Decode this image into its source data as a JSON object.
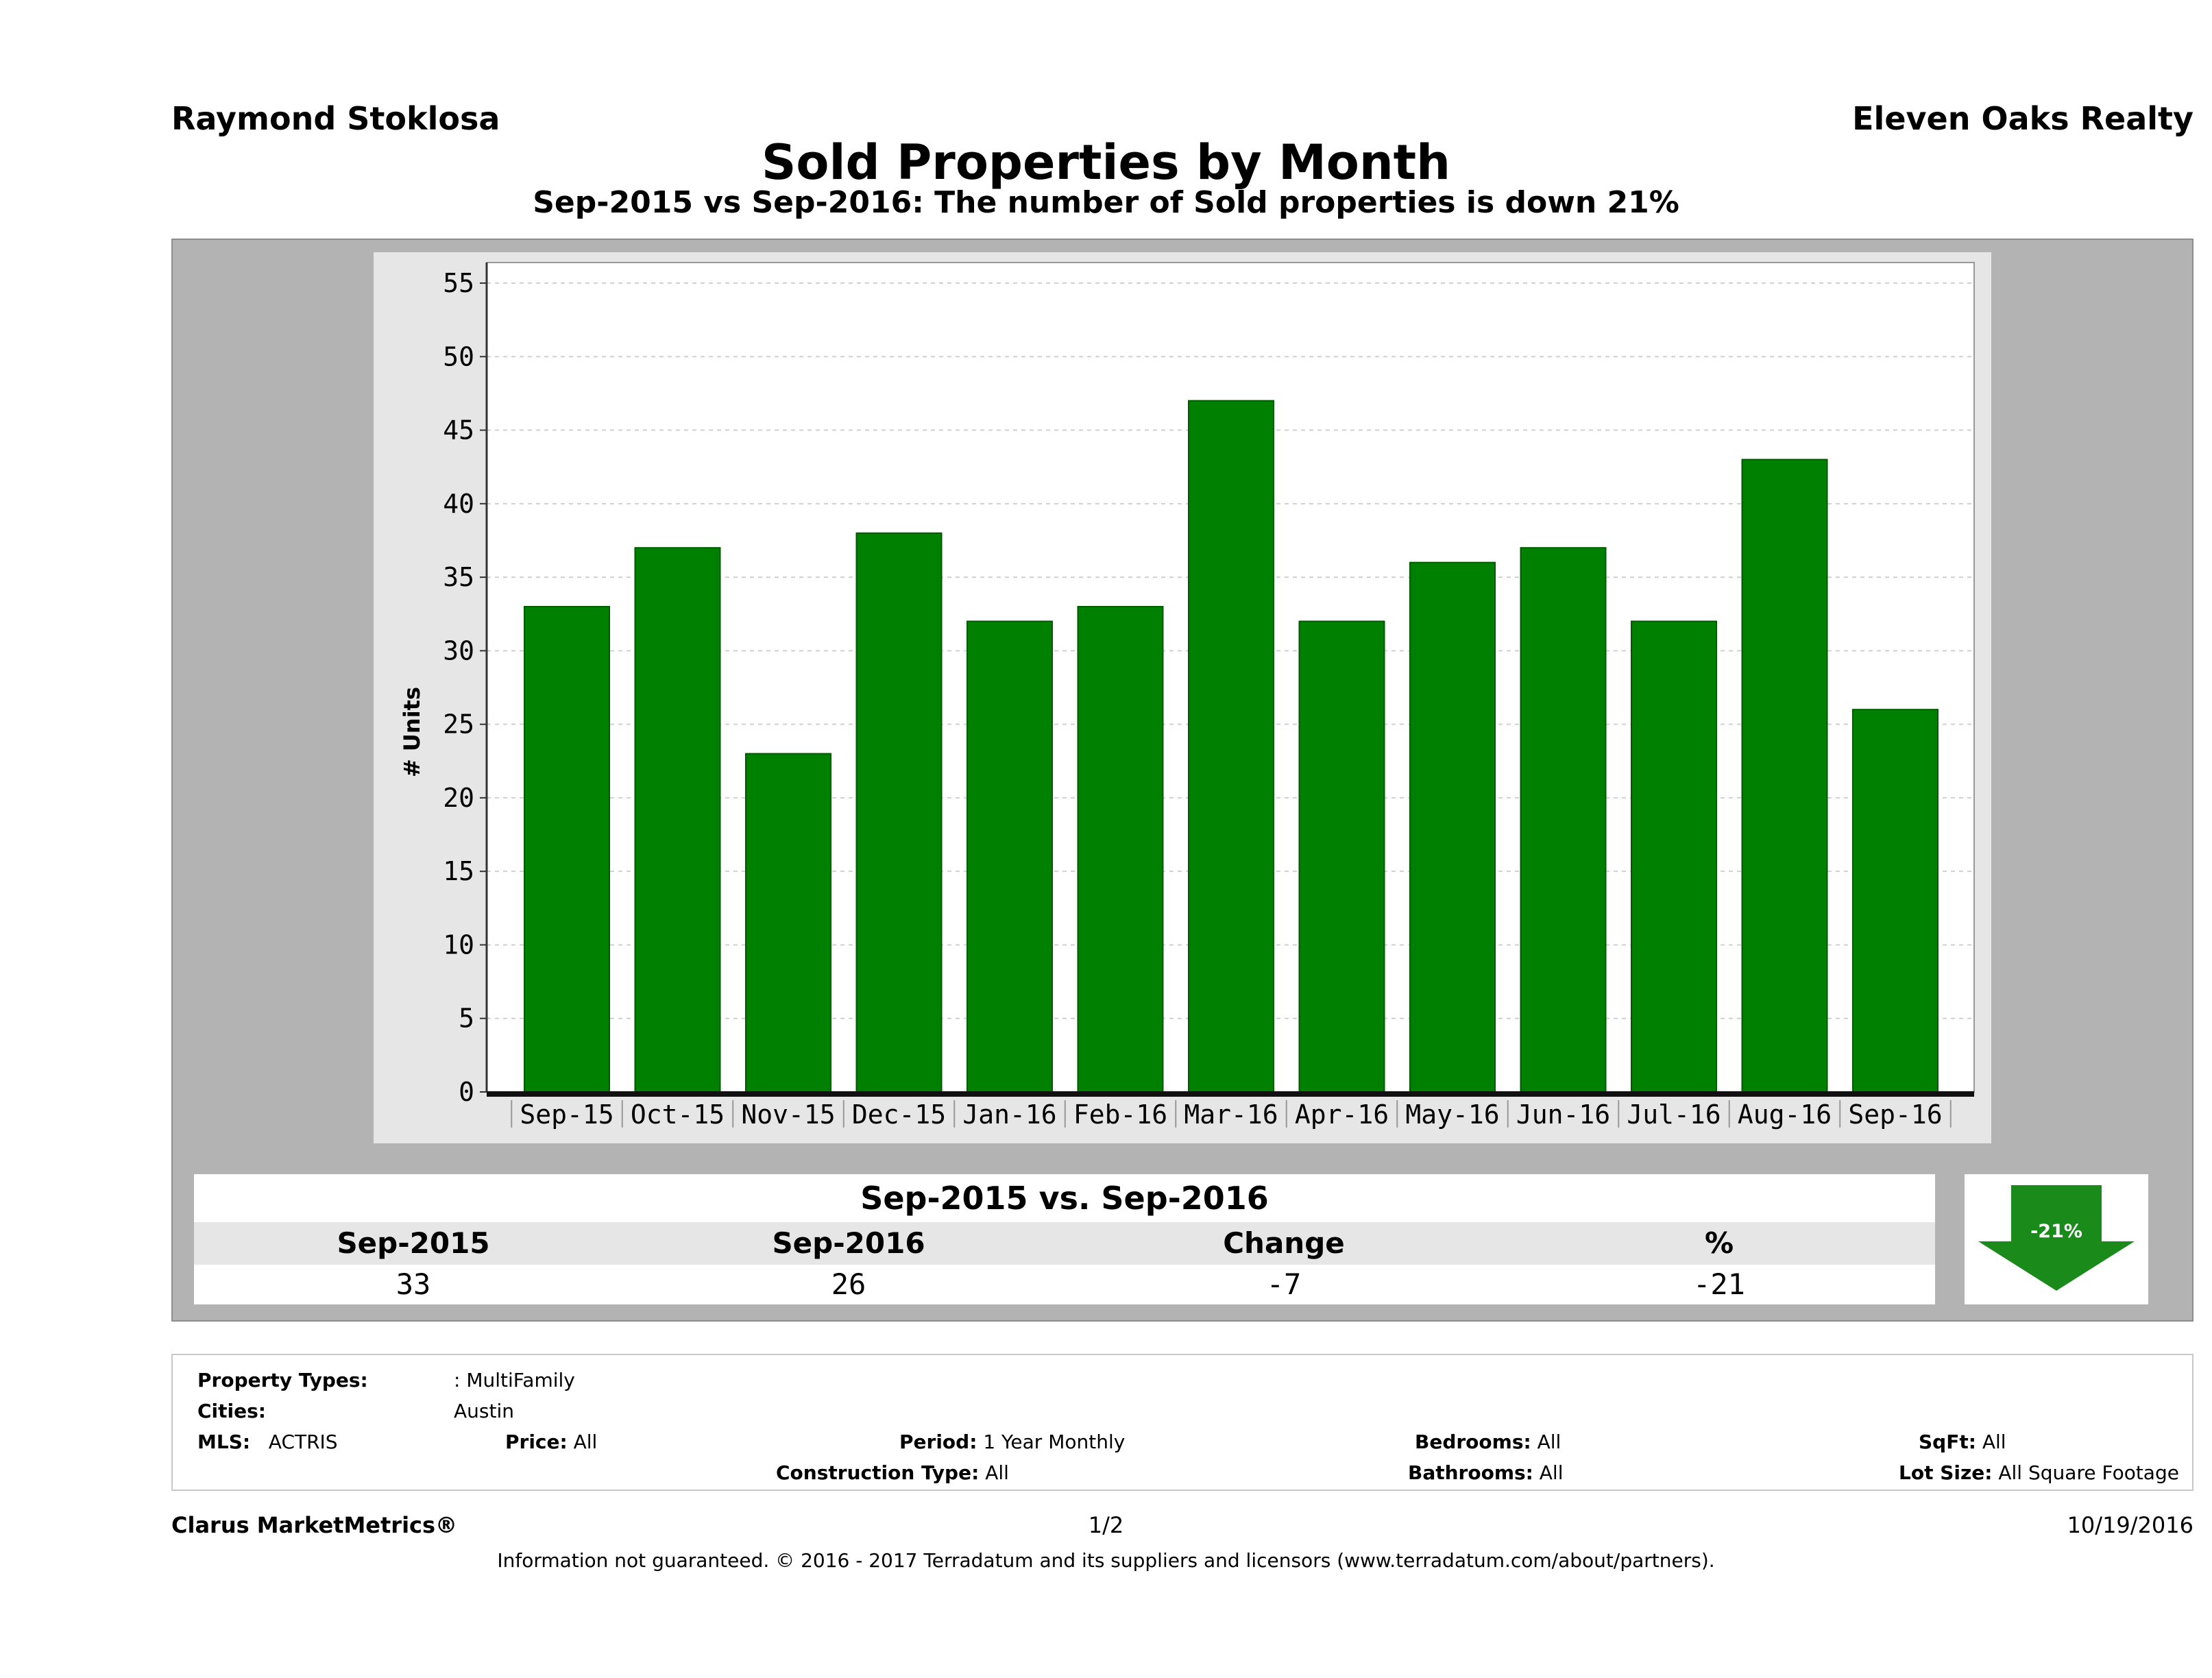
{
  "header": {
    "agent": "Raymond Stoklosa",
    "company": "Eleven Oaks Realty",
    "title": "Sold Properties by Month",
    "subtitle": "Sep-2015 vs Sep-2016: The number of Sold  properties is down 21%"
  },
  "chart_data": {
    "type": "bar",
    "categories": [
      "Sep-15",
      "Oct-15",
      "Nov-15",
      "Dec-15",
      "Jan-16",
      "Feb-16",
      "Mar-16",
      "Apr-16",
      "May-16",
      "Jun-16",
      "Jul-16",
      "Aug-16",
      "Sep-16"
    ],
    "values": [
      33,
      37,
      23,
      38,
      32,
      33,
      47,
      32,
      36,
      37,
      32,
      43,
      26
    ],
    "ylabel": "# Units",
    "xlabel": "",
    "ylim": [
      0,
      55
    ],
    "yticks": [
      0,
      5,
      10,
      15,
      20,
      25,
      30,
      35,
      40,
      45,
      50,
      55
    ],
    "grid": true,
    "bar_color": "#008000"
  },
  "comparison": {
    "title": "Sep-2015 vs. Sep-2016",
    "headers": [
      "Sep-2015",
      "Sep-2016",
      "Change",
      "%"
    ],
    "values": [
      "33",
      "26",
      "-7",
      "-21"
    ],
    "badge": "-21%",
    "direction": "down",
    "badge_color": "#1a8a1a"
  },
  "filters": {
    "property_types_label": "Property Types:",
    "property_types_value": ": MultiFamily",
    "cities_label": "Cities:",
    "cities_value": "Austin",
    "mls_label": "MLS:",
    "mls_value": "ACTRIS",
    "price_label": "Price:",
    "price_value": "All",
    "period_label": "Period:",
    "period_value": "1 Year Monthly",
    "construction_label": "Construction Type:",
    "construction_value": "All",
    "bedrooms_label": "Bedrooms:",
    "bedrooms_value": "All",
    "bathrooms_label": "Bathrooms:",
    "bathrooms_value": "All",
    "sqft_label": "SqFt:",
    "sqft_value": "All",
    "lotsize_label": "Lot Size:",
    "lotsize_value": "All Square Footage"
  },
  "footer": {
    "brand": "Clarus MarketMetrics®",
    "page": "1/2",
    "date": "10/19/2016",
    "disclaimer": "Information not guaranteed. © 2016 - 2017 Terradatum and its suppliers and licensors (www.terradatum.com/about/partners)."
  }
}
